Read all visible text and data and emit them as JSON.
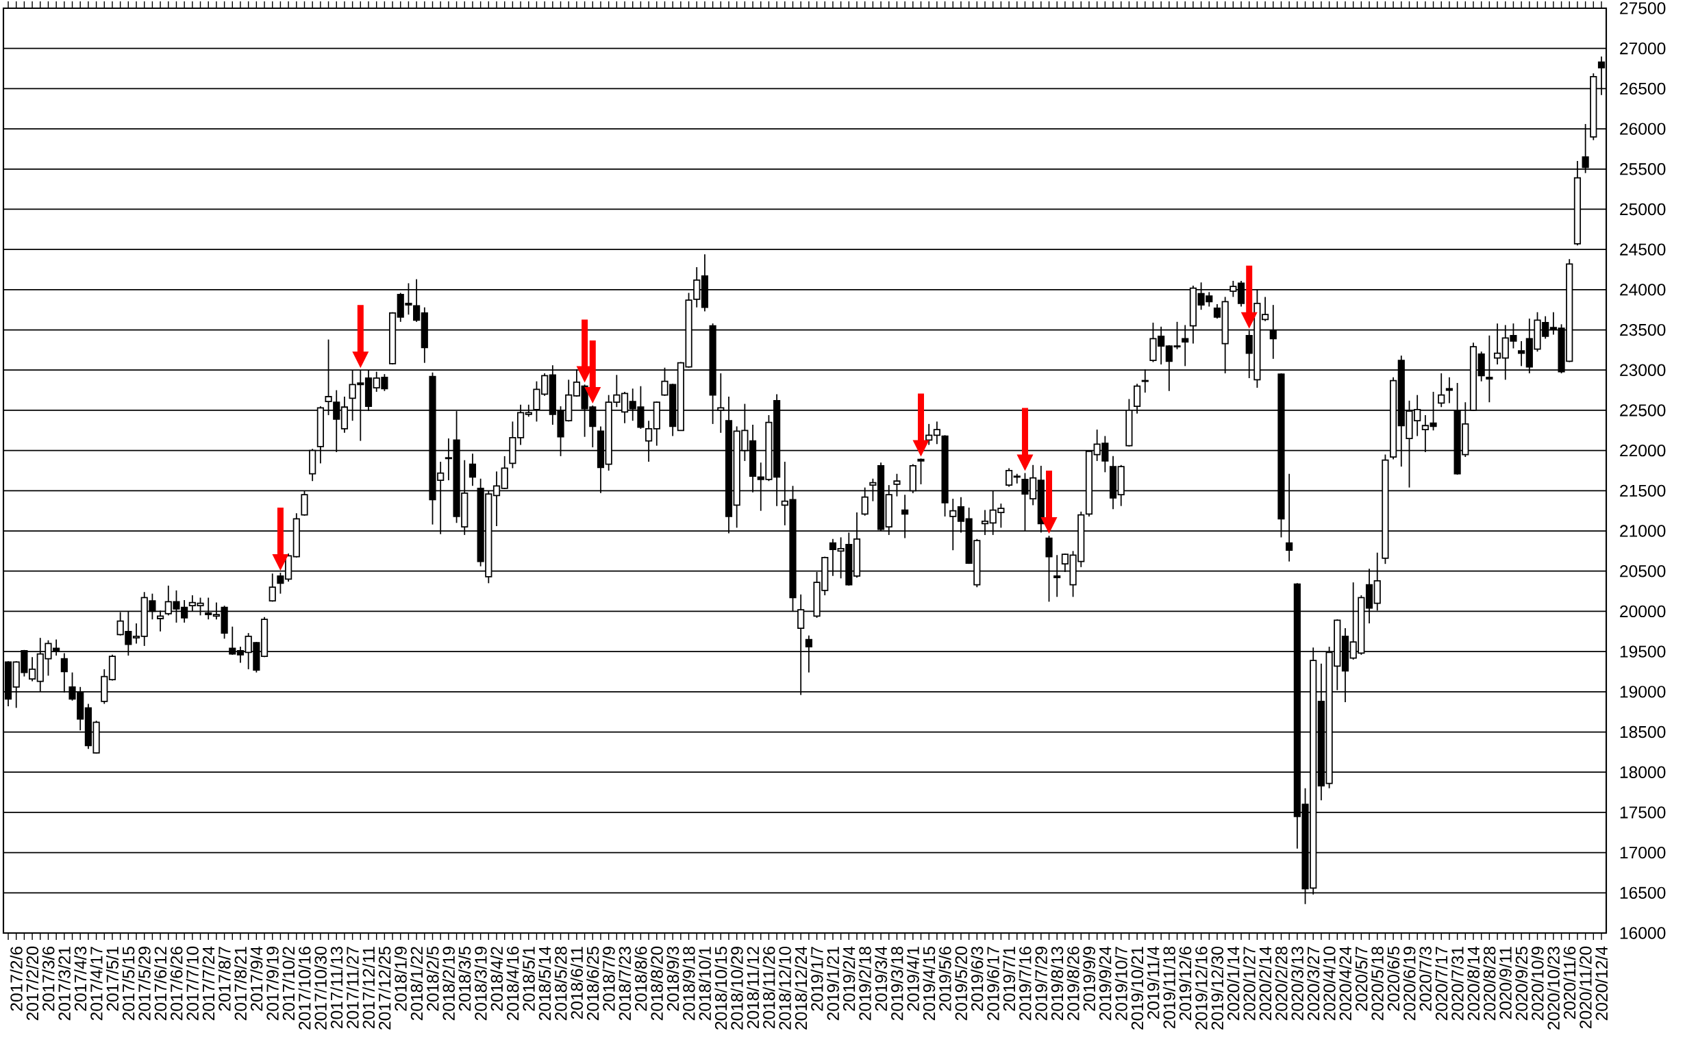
{
  "chart_data": {
    "type": "candlestick",
    "categories": [
      null,
      "2017/2/6",
      null,
      "2017/2/20",
      null,
      "2017/3/6",
      null,
      "2017/3/21",
      null,
      "2017/4/3",
      null,
      "2017/4/17",
      null,
      "2017/5/1",
      null,
      "2017/5/15",
      null,
      "2017/5/29",
      null,
      "2017/6/12",
      null,
      "2017/6/26",
      null,
      "2017/7/10",
      null,
      "2017/7/24",
      null,
      "2017/8/7",
      null,
      "2017/8/21",
      null,
      "2017/9/4",
      null,
      "2017/9/19",
      null,
      "2017/10/2",
      null,
      "2017/10/16",
      null,
      "2017/10/30",
      null,
      "2017/11/13",
      null,
      "2017/11/27",
      null,
      "2017/12/11",
      null,
      "2017/12/25",
      null,
      "2018/1/9",
      null,
      "2018/1/22",
      null,
      "2018/2/5",
      null,
      "2018/2/19",
      null,
      "2018/3/5",
      null,
      "2018/3/19",
      null,
      "2018/4/2",
      null,
      "2018/4/16",
      null,
      "2018/5/1",
      null,
      "2018/5/14",
      null,
      "2018/5/28",
      null,
      "2018/6/11",
      null,
      "2018/6/25",
      null,
      "2018/7/9",
      null,
      "2018/7/23",
      null,
      "2018/8/6",
      null,
      "2018/8/20",
      null,
      "2018/9/3",
      null,
      "2018/9/18",
      null,
      "2018/10/1",
      null,
      "2018/10/15",
      null,
      "2018/10/29",
      null,
      "2018/11/12",
      null,
      "2018/11/26",
      null,
      "2018/12/10",
      null,
      "2018/12/24",
      null,
      "2019/1/7",
      null,
      "2019/1/21",
      null,
      "2019/2/4",
      null,
      "2019/2/18",
      null,
      "2019/3/4",
      null,
      "2019/3/18",
      null,
      "2019/4/1",
      null,
      "2019/4/15",
      null,
      "2019/5/6",
      null,
      "2019/5/20",
      null,
      "2019/6/3",
      null,
      "2019/6/17",
      null,
      "2019/7/1",
      null,
      "2019/7/16",
      null,
      "2019/7/29",
      null,
      "2019/8/13",
      null,
      "2019/8/26",
      null,
      "2019/9/9",
      null,
      "2019/9/24",
      null,
      "2019/10/7",
      null,
      "2019/10/21",
      null,
      "2019/11/4",
      null,
      "2019/11/18",
      null,
      "2019/12/6",
      null,
      "2019/12/16",
      null,
      "2019/12/30",
      null,
      "2020/1/14",
      null,
      "2020/1/27",
      null,
      "2020/2/14",
      null,
      "2020/2/28",
      null,
      "2020/3/13",
      null,
      "2020/3/27",
      null,
      "2020/4/10",
      null,
      "2020/4/24",
      null,
      "2020/5/7",
      null,
      "2020/5/18",
      null,
      "2020/6/5",
      null,
      "2020/6/19",
      null,
      "2020/7/3",
      null,
      "2020/7/17",
      null,
      "2020/7/31",
      null,
      "2020/8/14",
      null,
      "2020/8/28",
      null,
      "2020/9/11",
      null,
      "2020/9/25",
      null,
      "2020/10/9",
      null,
      "2020/10/23",
      null,
      "2020/11/6",
      null,
      "2020/11/20",
      null,
      "2020/12/4"
    ],
    "ohlc": [
      [
        19370,
        19380,
        18820,
        18910
      ],
      [
        19060,
        19380,
        18800,
        19370
      ],
      [
        19510,
        19520,
        19190,
        19240
      ],
      [
        19160,
        19430,
        19130,
        19280
      ],
      [
        19130,
        19670,
        19000,
        19470
      ],
      [
        19410,
        19640,
        19200,
        19600
      ],
      [
        19540,
        19650,
        19450,
        19510
      ],
      [
        19410,
        19480,
        18990,
        19250
      ],
      [
        19060,
        19240,
        18890,
        18910
      ],
      [
        18990,
        19060,
        18520,
        18660
      ],
      [
        18800,
        18850,
        18290,
        18330
      ],
      [
        18240,
        18640,
        18230,
        18620
      ],
      [
        18880,
        19280,
        18850,
        19190
      ],
      [
        19150,
        19460,
        19140,
        19440
      ],
      [
        19710,
        19990,
        19700,
        19880
      ],
      [
        19750,
        20000,
        19450,
        19590
      ],
      [
        19670,
        19850,
        19600,
        19690
      ],
      [
        19690,
        20240,
        19570,
        20170
      ],
      [
        20130,
        20220,
        19900,
        20000
      ],
      [
        19910,
        20010,
        19750,
        19940
      ],
      [
        19970,
        20320,
        19950,
        20120
      ],
      [
        20120,
        20260,
        19860,
        20030
      ],
      [
        20050,
        20140,
        19860,
        19920
      ],
      [
        20070,
        20200,
        20000,
        20110
      ],
      [
        20070,
        20170,
        19950,
        20100
      ],
      [
        19980,
        20170,
        19900,
        19960
      ],
      [
        19940,
        20110,
        19900,
        19960
      ],
      [
        20050,
        20070,
        19660,
        19730
      ],
      [
        19540,
        19810,
        19460,
        19470
      ],
      [
        19510,
        19560,
        19360,
        19460
      ],
      [
        19490,
        19730,
        19280,
        19690
      ],
      [
        19610,
        19620,
        19240,
        19270
      ],
      [
        19440,
        19930,
        19430,
        19900
      ],
      [
        20130,
        20470,
        20120,
        20300
      ],
      [
        20440,
        20480,
        20220,
        20350
      ],
      [
        20400,
        20720,
        20370,
        20690
      ],
      [
        20680,
        21220,
        20670,
        21150
      ],
      [
        21200,
        21500,
        21190,
        21450
      ],
      [
        21710,
        22020,
        21620,
        22000
      ],
      [
        22050,
        22550,
        21840,
        22530
      ],
      [
        22610,
        23380,
        22440,
        22670
      ],
      [
        22600,
        22750,
        21980,
        22390
      ],
      [
        22270,
        22670,
        22220,
        22540
      ],
      [
        22650,
        23000,
        22370,
        22820
      ],
      [
        22840,
        23000,
        22120,
        22820
      ],
      [
        22900,
        23000,
        22490,
        22550
      ],
      [
        22780,
        22980,
        22730,
        22900
      ],
      [
        22910,
        22950,
        22740,
        22770
      ],
      [
        23080,
        23720,
        23070,
        23710
      ],
      [
        23940,
        23960,
        23600,
        23660
      ],
      [
        23830,
        24080,
        23690,
        23810
      ],
      [
        23800,
        24130,
        23600,
        23620
      ],
      [
        23710,
        23780,
        23090,
        23280
      ],
      [
        22920,
        22970,
        21080,
        21390
      ],
      [
        21630,
        21860,
        20960,
        21720
      ],
      [
        21910,
        22150,
        21630,
        21900
      ],
      [
        22130,
        22490,
        21100,
        21180
      ],
      [
        21050,
        21880,
        20950,
        21470
      ],
      [
        21830,
        21960,
        21560,
        21670
      ],
      [
        21530,
        21650,
        20560,
        20620
      ],
      [
        20430,
        21500,
        20350,
        21460
      ],
      [
        21440,
        21740,
        21060,
        21560
      ],
      [
        21530,
        21930,
        21520,
        21780
      ],
      [
        21840,
        22360,
        21780,
        22160
      ],
      [
        22160,
        22570,
        22070,
        22470
      ],
      [
        22450,
        22570,
        22420,
        22470
      ],
      [
        22510,
        22860,
        22360,
        22760
      ],
      [
        22700,
        22960,
        22680,
        22930
      ],
      [
        22940,
        23060,
        22320,
        22450
      ],
      [
        22500,
        22550,
        21930,
        22170
      ],
      [
        22370,
        22880,
        22360,
        22690
      ],
      [
        22680,
        23010,
        22670,
        22850
      ],
      [
        22800,
        22820,
        22170,
        22520
      ],
      [
        22540,
        22560,
        22040,
        22300
      ],
      [
        22240,
        22300,
        21470,
        21790
      ],
      [
        21830,
        22690,
        21750,
        22600
      ],
      [
        22600,
        22940,
        22540,
        22690
      ],
      [
        22480,
        22730,
        22340,
        22710
      ],
      [
        22610,
        22770,
        22370,
        22520
      ],
      [
        22540,
        22800,
        22270,
        22290
      ],
      [
        22120,
        22370,
        21860,
        22270
      ],
      [
        22270,
        22610,
        22060,
        22600
      ],
      [
        22690,
        23030,
        22680,
        22860
      ],
      [
        22820,
        22830,
        22180,
        22300
      ],
      [
        22250,
        23100,
        22250,
        23090
      ],
      [
        23040,
        23960,
        23030,
        23870
      ],
      [
        23880,
        24280,
        23780,
        24120
      ],
      [
        24170,
        24440,
        23730,
        23780
      ],
      [
        23550,
        23580,
        22330,
        22690
      ],
      [
        22500,
        22960,
        22220,
        22530
      ],
      [
        22370,
        22670,
        20970,
        21180
      ],
      [
        21320,
        22300,
        21040,
        22240
      ],
      [
        22000,
        22580,
        21870,
        22250
      ],
      [
        22120,
        22320,
        21480,
        21680
      ],
      [
        21670,
        21850,
        21250,
        21640
      ],
      [
        21640,
        22440,
        21620,
        22350
      ],
      [
        22620,
        22700,
        21310,
        21670
      ],
      [
        21320,
        21860,
        21070,
        21370
      ],
      [
        21390,
        21560,
        20000,
        20170
      ],
      [
        19790,
        20210,
        18960,
        20020
      ],
      [
        19650,
        19700,
        19240,
        19560
      ],
      [
        19940,
        20490,
        19920,
        20360
      ],
      [
        20260,
        20680,
        20200,
        20670
      ],
      [
        20850,
        20900,
        20440,
        20770
      ],
      [
        20750,
        20920,
        20410,
        20780
      ],
      [
        20830,
        20980,
        20320,
        20330
      ],
      [
        20440,
        21230,
        20420,
        20900
      ],
      [
        21210,
        21540,
        21190,
        21420
      ],
      [
        21570,
        21650,
        21370,
        21600
      ],
      [
        21810,
        21850,
        21000,
        21020
      ],
      [
        21050,
        21570,
        20950,
        21450
      ],
      [
        21580,
        21710,
        21430,
        21620
      ],
      [
        21260,
        21450,
        20910,
        21210
      ],
      [
        21500,
        21830,
        21470,
        21810
      ],
      [
        21890,
        21900,
        21580,
        21870
      ],
      [
        22130,
        22330,
        22070,
        22190
      ],
      [
        22190,
        22360,
        22080,
        22260
      ],
      [
        22180,
        22190,
        21180,
        21350
      ],
      [
        21180,
        21400,
        20760,
        21250
      ],
      [
        21300,
        21420,
        20980,
        21120
      ],
      [
        21150,
        21290,
        20590,
        20600
      ],
      [
        20330,
        20900,
        20300,
        20880
      ],
      [
        21090,
        21260,
        20950,
        21120
      ],
      [
        21100,
        21500,
        20950,
        21260
      ],
      [
        21230,
        21340,
        21040,
        21280
      ],
      [
        21570,
        21780,
        21550,
        21750
      ],
      [
        21670,
        21710,
        21590,
        21680
      ],
      [
        21640,
        21720,
        21000,
        21460
      ],
      [
        21400,
        21820,
        21320,
        21660
      ],
      [
        21630,
        21810,
        20980,
        21090
      ],
      [
        20910,
        20940,
        20120,
        20680
      ],
      [
        20440,
        20700,
        20180,
        20420
      ],
      [
        20590,
        20720,
        20490,
        20710
      ],
      [
        20330,
        20750,
        20180,
        20700
      ],
      [
        20620,
        21240,
        20550,
        21200
      ],
      [
        21210,
        22000,
        21180,
        21990
      ],
      [
        21950,
        22260,
        21870,
        22080
      ],
      [
        22090,
        22180,
        21730,
        21870
      ],
      [
        21800,
        21930,
        21270,
        21410
      ],
      [
        21450,
        21820,
        21310,
        21800
      ],
      [
        22060,
        22640,
        22050,
        22500
      ],
      [
        22550,
        22830,
        22460,
        22800
      ],
      [
        22860,
        23010,
        22720,
        22870
      ],
      [
        23120,
        23590,
        23100,
        23390
      ],
      [
        23420,
        23540,
        23070,
        23300
      ],
      [
        23300,
        23310,
        22740,
        23110
      ],
      [
        23300,
        23600,
        23260,
        23290
      ],
      [
        23390,
        23560,
        23050,
        23350
      ],
      [
        23550,
        24050,
        23330,
        24020
      ],
      [
        23950,
        24090,
        23750,
        23810
      ],
      [
        23920,
        23970,
        23790,
        23850
      ],
      [
        23770,
        23820,
        23640,
        23660
      ],
      [
        23330,
        23910,
        22960,
        23850
      ],
      [
        23980,
        24110,
        23910,
        24040
      ],
      [
        24080,
        24110,
        23790,
        23830
      ],
      [
        23430,
        23490,
        22900,
        23210
      ],
      [
        22880,
        24000,
        22780,
        23830
      ],
      [
        23630,
        23910,
        23610,
        23690
      ],
      [
        23490,
        23810,
        23140,
        23390
      ],
      [
        22950,
        22960,
        20920,
        21150
      ],
      [
        20850,
        21710,
        20620,
        20760
      ],
      [
        20340,
        20350,
        17050,
        17450
      ],
      [
        17600,
        17800,
        16360,
        16550
      ],
      [
        16560,
        19550,
        16480,
        19390
      ],
      [
        18880,
        19350,
        17650,
        17830
      ],
      [
        17860,
        19560,
        17800,
        19490
      ],
      [
        19320,
        19900,
        19020,
        19890
      ],
      [
        19690,
        19790,
        18870,
        19260
      ],
      [
        19420,
        20360,
        19400,
        19620
      ],
      [
        19480,
        20200,
        19460,
        20170
      ],
      [
        20330,
        20530,
        19850,
        20040
      ],
      [
        20100,
        20730,
        20010,
        20380
      ],
      [
        20660,
        21950,
        20590,
        21880
      ],
      [
        21920,
        22910,
        21890,
        22870
      ],
      [
        23120,
        23180,
        21800,
        22310
      ],
      [
        22150,
        22620,
        21540,
        22490
      ],
      [
        22370,
        22690,
        22180,
        22510
      ],
      [
        22260,
        22440,
        21980,
        22310
      ],
      [
        22340,
        22730,
        22250,
        22300
      ],
      [
        22590,
        22960,
        22540,
        22690
      ],
      [
        22770,
        22910,
        22590,
        22750
      ],
      [
        22500,
        22840,
        21700,
        21710
      ],
      [
        21950,
        22600,
        21920,
        22330
      ],
      [
        22500,
        23340,
        22490,
        23290
      ],
      [
        23200,
        23230,
        22860,
        22930
      ],
      [
        22910,
        23430,
        22600,
        22890
      ],
      [
        23150,
        23580,
        23070,
        23210
      ],
      [
        23150,
        23560,
        22880,
        23400
      ],
      [
        23430,
        23580,
        23270,
        23360
      ],
      [
        23240,
        23360,
        23050,
        23210
      ],
      [
        23390,
        23640,
        22960,
        23040
      ],
      [
        23260,
        23720,
        23230,
        23620
      ],
      [
        23590,
        23670,
        23390,
        23420
      ],
      [
        23530,
        23720,
        23440,
        23510
      ],
      [
        23520,
        23570,
        22960,
        22980
      ],
      [
        23110,
        24380,
        23100,
        24320
      ],
      [
        24570,
        25600,
        24550,
        25390
      ],
      [
        25650,
        26060,
        25450,
        25520
      ],
      [
        25900,
        26690,
        25860,
        26650
      ],
      [
        26830,
        26900,
        26420,
        26760
      ]
    ],
    "ylim": [
      16000,
      27500
    ],
    "yticks": [
      16000,
      16500,
      17000,
      17500,
      18000,
      18500,
      19000,
      19500,
      20000,
      20500,
      21000,
      21500,
      22000,
      22500,
      23000,
      23500,
      24000,
      24500,
      25000,
      25500,
      26000,
      26500,
      27000,
      27500
    ],
    "grid": "y"
  }
}
